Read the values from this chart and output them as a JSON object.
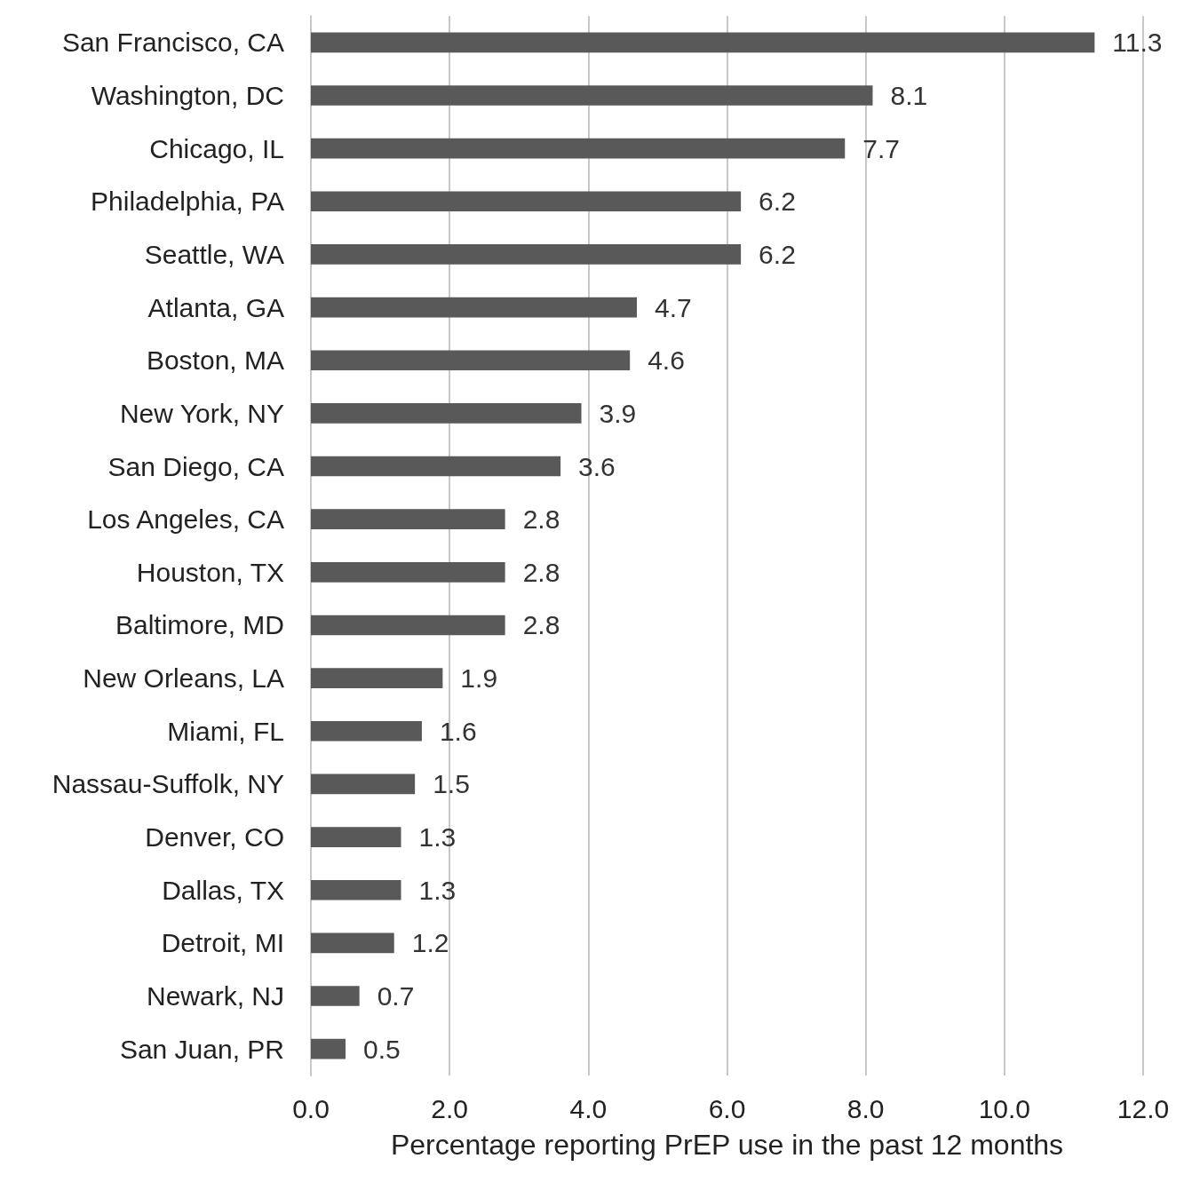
{
  "chart_data": {
    "type": "bar",
    "orientation": "horizontal",
    "xlabel": "Percentage reporting PrEP use in the past 12 months",
    "categories": [
      "San Francisco, CA",
      "Washington, DC",
      "Chicago, IL",
      "Philadelphia, PA",
      "Seattle, WA",
      "Atlanta, GA",
      "Boston, MA",
      "New York, NY",
      "San Diego, CA",
      "Los Angeles, CA",
      "Houston, TX",
      "Baltimore, MD",
      "New Orleans, LA",
      "Miami, FL",
      "Nassau-Suffolk, NY",
      "Denver, CO",
      "Dallas, TX",
      "Detroit, MI",
      "Newark, NJ",
      "San Juan, PR"
    ],
    "values": [
      11.3,
      8.1,
      7.7,
      6.2,
      6.2,
      4.7,
      4.6,
      3.9,
      3.6,
      2.8,
      2.8,
      2.8,
      1.9,
      1.6,
      1.5,
      1.3,
      1.3,
      1.2,
      0.7,
      0.5
    ],
    "color": "#595959",
    "data_labels": true,
    "xlim": [
      0,
      12
    ],
    "xticks": [
      {
        "value": 0,
        "label": "0.0"
      },
      {
        "value": 2,
        "label": "2.0"
      },
      {
        "value": 4,
        "label": "4.0"
      },
      {
        "value": 6,
        "label": "6.0"
      },
      {
        "value": 8,
        "label": "8.0"
      },
      {
        "value": 10,
        "label": "10.0"
      },
      {
        "value": 12,
        "label": "12.0"
      }
    ],
    "grid": "x"
  }
}
